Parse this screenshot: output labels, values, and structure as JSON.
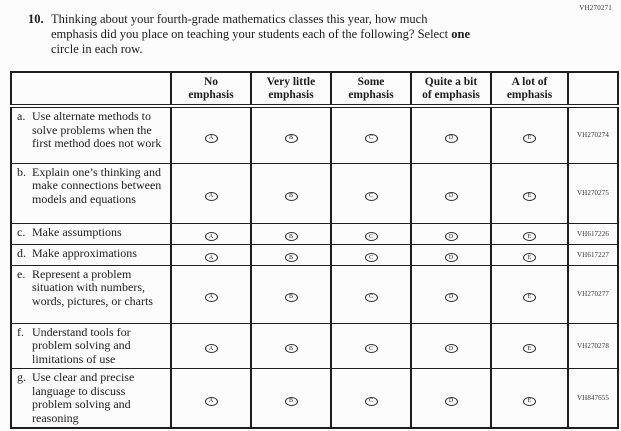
{
  "page_code": "VH270271",
  "question": {
    "number": "10.",
    "lines": [
      "Thinking about your fourth-grade mathematics classes this year, how much",
      "emphasis did you place on teaching your students each of the following? Select",
      "circle in each row."
    ],
    "bold_word": "one"
  },
  "table": {
    "columns": [
      "No\nemphasis",
      "Very little\nemphasis",
      "Some\nemphasis",
      "Quite a bit\nof emphasis",
      "A lot of\nemphasis"
    ],
    "option_letters": [
      "A",
      "B",
      "C",
      "D",
      "E"
    ],
    "rows": [
      {
        "letter": "a.",
        "label": "Use alternate methods to solve problems when the first method does not work",
        "code": "VH270274"
      },
      {
        "letter": "b.",
        "label": "Explain one’s thinking and make connections between models and equations",
        "code": "VH270275"
      },
      {
        "letter": "c.",
        "label": "Make assumptions",
        "code": "VH617226"
      },
      {
        "letter": "d.",
        "label": "Make approximations",
        "code": "VH617227"
      },
      {
        "letter": "e.",
        "label": "Represent a problem situation with numbers, words, pictures, or charts",
        "code": "VH270277"
      },
      {
        "letter": "f.",
        "label": "Understand tools for problem solving and limitations of use",
        "code": "VH270278"
      },
      {
        "letter": "g.",
        "label": "Use clear and precise language to discuss problem solving and reasoning",
        "code": "VH847655"
      }
    ]
  },
  "colors": {
    "background": "#fcfcfc",
    "text": "#1c1c1c",
    "border": "#1f1f1f"
  }
}
